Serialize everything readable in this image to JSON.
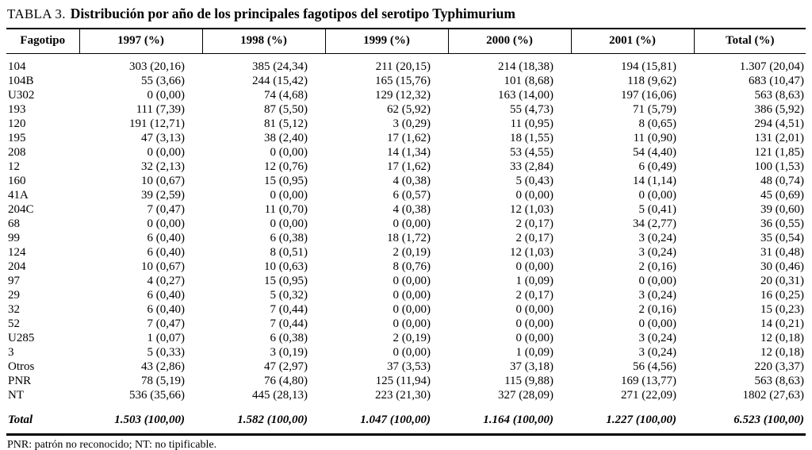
{
  "title": {
    "prefix": "TABLA 3.",
    "text": "Distribución por año de los principales fagotipos del serotipo Typhimurium"
  },
  "table": {
    "columns": [
      "Fagotipo",
      "1997 (%)",
      "1998 (%)",
      "1999 (%)",
      "2000 (%)",
      "2001 (%)",
      "Total (%)"
    ],
    "rows": [
      [
        "104",
        "303 (20,16)",
        "385 (24,34)",
        "211 (20,15)",
        "214 (18,38)",
        "194 (15,81)",
        "1.307 (20,04)"
      ],
      [
        "104B",
        "55 (3,66)",
        "244 (15,42)",
        "165 (15,76)",
        "101 (8,68)",
        "118 (9,62)",
        "683 (10,47)"
      ],
      [
        "U302",
        "0 (0,00)",
        "74 (4,68)",
        "129 (12,32)",
        "163 (14,00)",
        "197 (16,06)",
        "563 (8,63)"
      ],
      [
        "193",
        "111 (7,39)",
        "87 (5,50)",
        "62 (5,92)",
        "55 (4,73)",
        "71 (5,79)",
        "386 (5,92)"
      ],
      [
        "120",
        "191 (12,71)",
        "81 (5,12)",
        "3 (0,29)",
        "11 (0,95)",
        "8 (0,65)",
        "294 (4,51)"
      ],
      [
        "195",
        "47 (3,13)",
        "38 (2,40)",
        "17 (1,62)",
        "18 (1,55)",
        "11 (0,90)",
        "131 (2,01)"
      ],
      [
        "208",
        "0 (0,00)",
        "0 (0,00)",
        "14 (1,34)",
        "53 (4,55)",
        "54 (4,40)",
        "121 (1,85)"
      ],
      [
        "12",
        "32 (2,13)",
        "12 (0,76)",
        "17 (1,62)",
        "33 (2,84)",
        "6 (0,49)",
        "100 (1,53)"
      ],
      [
        "160",
        "10 (0,67)",
        "15 (0,95)",
        "4 (0,38)",
        "5 (0,43)",
        "14 (1,14)",
        "48 (0,74)"
      ],
      [
        "41A",
        "39 (2,59)",
        "0 (0,00)",
        "6 (0,57)",
        "0 (0,00)",
        "0 (0,00)",
        "45 (0,69)"
      ],
      [
        "204C",
        "7 (0,47)",
        "11 (0,70)",
        "4 (0,38)",
        "12 (1,03)",
        "5 (0,41)",
        "39 (0,60)"
      ],
      [
        "68",
        "0 (0,00)",
        "0 (0,00)",
        "0 (0,00)",
        "2 (0,17)",
        "34 (2,77)",
        "36 (0,55)"
      ],
      [
        "99",
        "6 (0,40)",
        "6 (0,38)",
        "18 (1,72)",
        "2 (0,17)",
        "3 (0,24)",
        "35 (0,54)"
      ],
      [
        "124",
        "6 (0,40)",
        "8 (0,51)",
        "2 (0,19)",
        "12 (1,03)",
        "3 (0,24)",
        "31 (0,48)"
      ],
      [
        "204",
        "10 (0,67)",
        "10 (0,63)",
        "8 (0,76)",
        "0 (0,00)",
        "2 (0,16)",
        "30 (0,46)"
      ],
      [
        "97",
        "4 (0,27)",
        "15 (0,95)",
        "0 (0,00)",
        "1 (0,09)",
        "0 (0,00)",
        "20 (0,31)"
      ],
      [
        "29",
        "6 (0,40)",
        "5 (0,32)",
        "0 (0,00)",
        "2 (0,17)",
        "3 (0,24)",
        "16 (0,25)"
      ],
      [
        "32",
        "6 (0,40)",
        "7 (0,44)",
        "0 (0,00)",
        "0 (0,00)",
        "2 (0,16)",
        "15 (0,23)"
      ],
      [
        "52",
        "7 (0,47)",
        "7 (0,44)",
        "0 (0,00)",
        "0 (0,00)",
        "0 (0,00)",
        "14 (0,21)"
      ],
      [
        "U285",
        "1 (0,07)",
        "6 (0,38)",
        "2 (0,19)",
        "0 (0,00)",
        "3 (0,24)",
        "12 (0,18)"
      ],
      [
        "3",
        "5 (0,33)",
        "3 (0,19)",
        "0 (0,00)",
        "1 (0,09)",
        "3 (0,24)",
        "12 (0,18)"
      ],
      [
        "Otros",
        "43 (2,86)",
        "47 (2,97)",
        "37 (3,53)",
        "37 (3,18)",
        "56 (4,56)",
        "220 (3,37)"
      ],
      [
        "PNR",
        "78 (5,19)",
        "76 (4,80)",
        "125 (11,94)",
        "115 (9,88)",
        "169 (13,77)",
        "563 (8,63)"
      ],
      [
        "NT",
        "536 (35,66)",
        "445 (28,13)",
        "223 (21,30)",
        "327 (28,09)",
        "271 (22,09)",
        "1802 (27,63)"
      ]
    ],
    "total_row": [
      "Total",
      "1.503 (100,00)",
      "1.582 (100,00)",
      "1.047 (100,00)",
      "1.164 (100,00)",
      "1.227 (100,00)",
      "6.523 (100,00)"
    ]
  },
  "footnote": "PNR: patrón no reconocido; NT: no tipificable."
}
